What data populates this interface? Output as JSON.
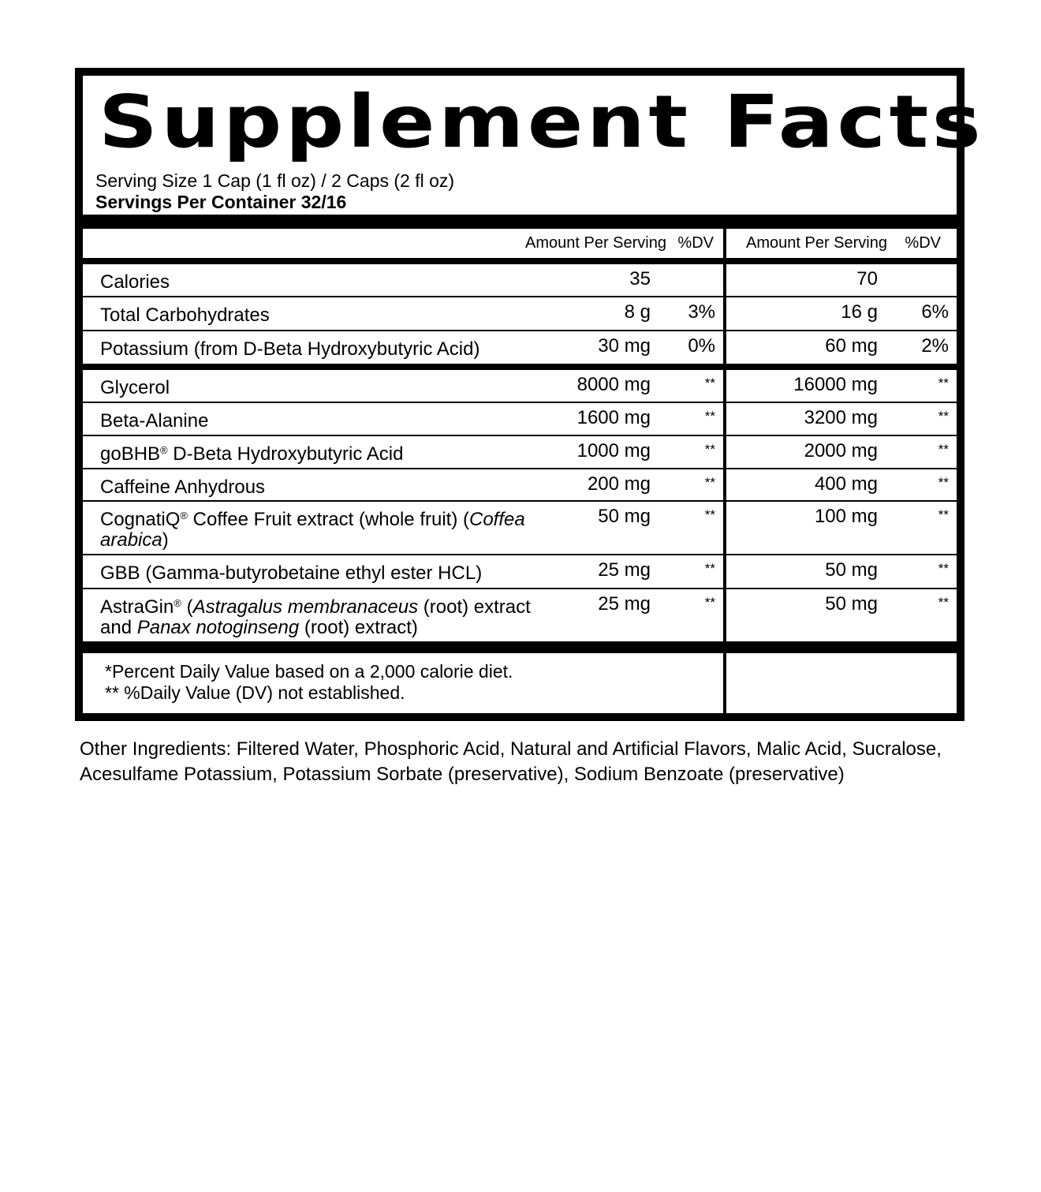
{
  "title": "Supplement Facts",
  "serving_size": "Serving Size 1 Cap (1 fl oz) / 2 Caps (2 fl oz)",
  "servings_per_container": "Servings Per Container 32/16",
  "header": {
    "amount1": "Amount Per Serving",
    "dv1": "%DV",
    "amount2": "Amount Per Serving",
    "dv2": "%DV"
  },
  "group1": [
    {
      "name": [
        {
          "t": "Calories"
        }
      ],
      "a1": "35",
      "d1": "",
      "a2": "70",
      "d2": ""
    },
    {
      "name": [
        {
          "t": "Total Carbohydrates"
        }
      ],
      "a1": "8 g",
      "d1": "3%",
      "a2": "16 g",
      "d2": "6%"
    },
    {
      "name": [
        {
          "t": "Potassium (from D-Beta Hydroxybutyric Acid)"
        }
      ],
      "a1": "30 mg",
      "d1": "0%",
      "a2": "60 mg",
      "d2": "2%"
    }
  ],
  "group2": [
    {
      "name": [
        {
          "t": "Glycerol"
        }
      ],
      "a1": "8000 mg",
      "d1": "**",
      "a2": "16000 mg",
      "d2": "**"
    },
    {
      "name": [
        {
          "t": "Beta-Alanine"
        }
      ],
      "a1": "1600 mg",
      "d1": "**",
      "a2": "3200 mg",
      "d2": "**"
    },
    {
      "name": [
        {
          "t": "goBHB"
        },
        {
          "t": "®",
          "s": "sup"
        },
        {
          "t": " D-Beta Hydroxybutyric Acid"
        }
      ],
      "a1": "1000 mg",
      "d1": "**",
      "a2": "2000 mg",
      "d2": "**"
    },
    {
      "name": [
        {
          "t": "Caffeine Anhydrous"
        }
      ],
      "a1": "200 mg",
      "d1": "**",
      "a2": "400 mg",
      "d2": "**"
    },
    {
      "name": [
        {
          "t": "CognatiQ"
        },
        {
          "t": "®",
          "s": "sup"
        },
        {
          "t": " Coffee Fruit extract (whole fruit) ("
        },
        {
          "t": "Coffea arabica",
          "s": "i"
        },
        {
          "t": ")"
        }
      ],
      "a1": "50 mg",
      "d1": "**",
      "a2": "100 mg",
      "d2": "**"
    },
    {
      "name": [
        {
          "t": "GBB (Gamma-butyrobetaine ethyl ester HCL)"
        }
      ],
      "a1": "25 mg",
      "d1": "**",
      "a2": "50 mg",
      "d2": "**"
    },
    {
      "name": [
        {
          "t": "AstraGin"
        },
        {
          "t": "®",
          "s": "sup"
        },
        {
          "t": " ("
        },
        {
          "t": "Astragalus membranaceus",
          "s": "i"
        },
        {
          "t": " (root) extract and "
        },
        {
          "t": "Panax notoginseng",
          "s": "i"
        },
        {
          "t": " (root) extract)"
        }
      ],
      "a1": "25 mg",
      "d1": "**",
      "a2": "50 mg",
      "d2": "**"
    }
  ],
  "footnote1": "*Percent Daily Value based on a 2,000 calorie diet.",
  "footnote2": "** %Daily Value (DV) not established.",
  "other_ingredients": "Other Ingredients: Filtered Water, Phosphoric Acid, Natural and Artificial Flavors, Malic Acid, Sucralose, Acesulfame Potassium, Potassium Sorbate (preservative), Sodium Benzoate (preservative)"
}
